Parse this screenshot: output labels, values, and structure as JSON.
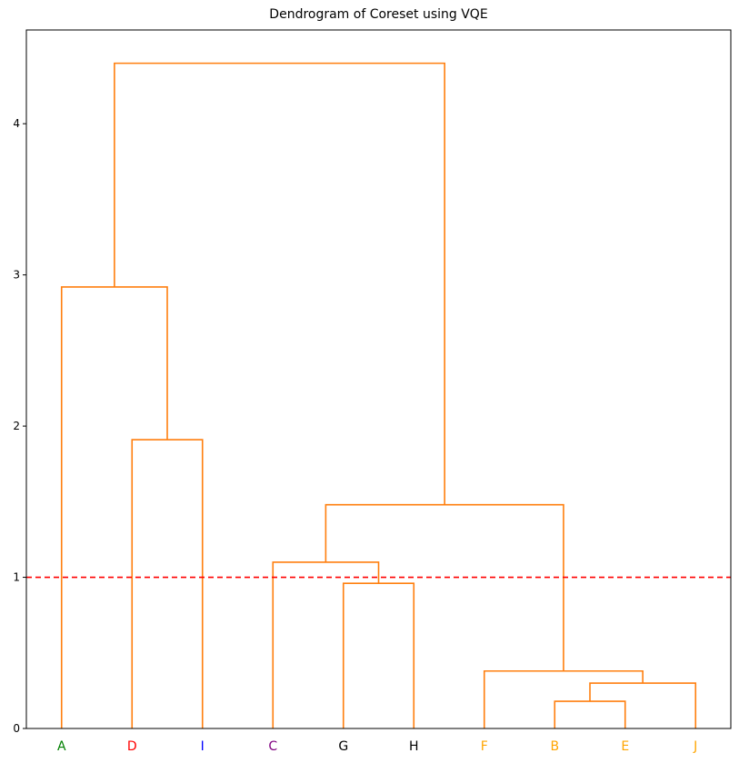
{
  "chart_data": {
    "type": "dendrogram",
    "title": "Dendrogram of Coreset using VQE",
    "xlabel": "",
    "ylabel": "",
    "ylim": [
      0,
      4.62
    ],
    "yticks": [
      0,
      1,
      2,
      3,
      4
    ],
    "grid": false,
    "leaves": [
      {
        "label": "A",
        "color": "#008000"
      },
      {
        "label": "D",
        "color": "#ff0000"
      },
      {
        "label": "I",
        "color": "#0000ff"
      },
      {
        "label": "C",
        "color": "#800080"
      },
      {
        "label": "G",
        "color": "#000000"
      },
      {
        "label": "H",
        "color": "#000000"
      },
      {
        "label": "F",
        "color": "#ffa500"
      },
      {
        "label": "B",
        "color": "#ffa500"
      },
      {
        "label": "E",
        "color": "#ffa500"
      },
      {
        "label": "J",
        "color": "#ffa500"
      }
    ],
    "merges": [
      {
        "left": "B",
        "right": "E",
        "height": 0.18
      },
      {
        "left": "(B,E)",
        "right": "J",
        "height": 0.3
      },
      {
        "left": "F",
        "right": "(B,E,J)",
        "height": 0.38
      },
      {
        "left": "G",
        "right": "H",
        "height": 0.96
      },
      {
        "left": "C",
        "right": "(G,H)",
        "height": 1.1
      },
      {
        "left": "(C,G,H)",
        "right": "(F,B,E,J)",
        "height": 1.48
      },
      {
        "left": "D",
        "right": "I",
        "height": 1.91
      },
      {
        "left": "A",
        "right": "(D,I)",
        "height": 2.92
      },
      {
        "left": "(A,D,I)",
        "right": "(C,G,H,F,B,E,J)",
        "height": 4.4
      }
    ],
    "link_color": "#ff7f0e",
    "threshold": {
      "value": 1.0,
      "color": "#ff0000",
      "style": "dashed"
    }
  }
}
